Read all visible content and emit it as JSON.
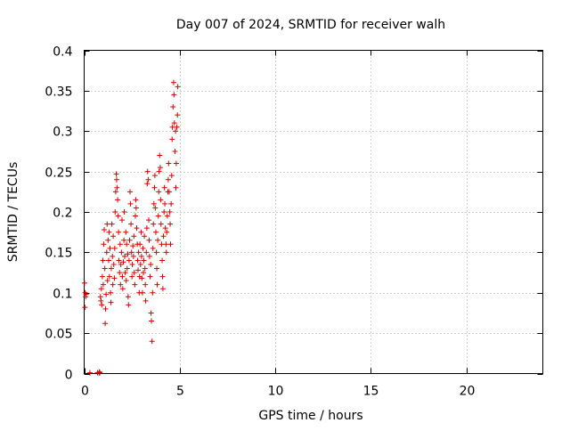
{
  "chart_data": {
    "type": "scatter",
    "title": "Day 007 of 2024, SRMTID for receiver walh",
    "xlabel": "GPS time / hours",
    "ylabel": "SRMTID / TECUs",
    "xlim": [
      0,
      24
    ],
    "ylim": [
      0,
      0.4
    ],
    "x_ticks": [
      0,
      5,
      10,
      15,
      20
    ],
    "x_tick_labels": [
      "0",
      "5",
      "10",
      "15",
      "20"
    ],
    "y_ticks": [
      0,
      0.05,
      0.1,
      0.15,
      0.2,
      0.25,
      0.3,
      0.35,
      0.4
    ],
    "y_tick_labels": [
      "0",
      "0.05",
      "0.1",
      "0.15",
      "0.2",
      "0.25",
      "0.3",
      "0.35",
      "0.4"
    ],
    "grid": true,
    "marker": "plus",
    "series_color": "#d90000",
    "series": [
      {
        "name": "SRMTID",
        "points": [
          [
            0.02,
            0.112
          ],
          [
            0.05,
            0.1
          ],
          [
            0.08,
            0.095
          ],
          [
            0.04,
            0.082
          ],
          [
            0.1,
            0.098
          ],
          [
            0.3,
            0.001
          ],
          [
            0.7,
            0.001
          ],
          [
            0.78,
            0.001
          ],
          [
            0.8,
            0.002
          ],
          [
            0.82,
            0.001
          ],
          [
            0.85,
            0.095
          ],
          [
            0.88,
            0.09
          ],
          [
            0.9,
            0.105
          ],
          [
            0.92,
            0.085
          ],
          [
            0.95,
            0.12
          ],
          [
            0.98,
            0.14
          ],
          [
            1.0,
            0.11
          ],
          [
            1.02,
            0.16
          ],
          [
            1.05,
            0.178
          ],
          [
            1.08,
            0.13
          ],
          [
            1.1,
            0.062
          ],
          [
            1.12,
            0.08
          ],
          [
            1.15,
            0.098
          ],
          [
            1.18,
            0.15
          ],
          [
            1.2,
            0.185
          ],
          [
            1.22,
            0.115
          ],
          [
            1.25,
            0.165
          ],
          [
            1.28,
            0.14
          ],
          [
            1.3,
            0.175
          ],
          [
            1.32,
            0.12
          ],
          [
            1.35,
            0.155
          ],
          [
            1.38,
            0.1
          ],
          [
            1.4,
            0.088
          ],
          [
            1.42,
            0.13
          ],
          [
            1.45,
            0.185
          ],
          [
            1.48,
            0.145
          ],
          [
            1.5,
            0.11
          ],
          [
            1.52,
            0.17
          ],
          [
            1.55,
            0.135
          ],
          [
            1.58,
            0.118
          ],
          [
            1.6,
            0.155
          ],
          [
            1.62,
            0.2
          ],
          [
            1.65,
            0.225
          ],
          [
            1.68,
            0.247
          ],
          [
            1.7,
            0.24
          ],
          [
            1.72,
            0.23
          ],
          [
            1.75,
            0.215
          ],
          [
            1.78,
            0.195
          ],
          [
            1.8,
            0.175
          ],
          [
            1.82,
            0.14
          ],
          [
            1.85,
            0.125
          ],
          [
            1.88,
            0.16
          ],
          [
            1.9,
            0.11
          ],
          [
            1.92,
            0.135
          ],
          [
            1.95,
            0.15
          ],
          [
            1.98,
            0.19
          ],
          [
            2.0,
            0.12
          ],
          [
            2.02,
            0.105
          ],
          [
            2.05,
            0.138
          ],
          [
            2.08,
            0.165
          ],
          [
            2.1,
            0.2
          ],
          [
            2.12,
            0.145
          ],
          [
            2.15,
            0.125
          ],
          [
            2.18,
            0.175
          ],
          [
            2.2,
            0.115
          ],
          [
            2.22,
            0.16
          ],
          [
            2.25,
            0.13
          ],
          [
            2.28,
            0.148
          ],
          [
            2.3,
            0.095
          ],
          [
            2.32,
            0.085
          ],
          [
            2.35,
            0.14
          ],
          [
            2.38,
            0.165
          ],
          [
            2.4,
            0.225
          ],
          [
            2.42,
            0.21
          ],
          [
            2.45,
            0.185
          ],
          [
            2.48,
            0.15
          ],
          [
            2.5,
            0.12
          ],
          [
            2.52,
            0.135
          ],
          [
            2.55,
            0.158
          ],
          [
            2.58,
            0.145
          ],
          [
            2.6,
            0.17
          ],
          [
            2.62,
            0.125
          ],
          [
            2.65,
            0.11
          ],
          [
            2.68,
            0.195
          ],
          [
            2.7,
            0.215
          ],
          [
            2.72,
            0.205
          ],
          [
            2.75,
            0.18
          ],
          [
            2.78,
            0.16
          ],
          [
            2.8,
            0.14
          ],
          [
            2.82,
            0.128
          ],
          [
            2.85,
            0.15
          ],
          [
            2.88,
            0.1
          ],
          [
            2.9,
            0.12
          ],
          [
            2.92,
            0.16
          ],
          [
            2.95,
            0.135
          ],
          [
            2.98,
            0.175
          ],
          [
            3.0,
            0.145
          ],
          [
            3.02,
            0.118
          ],
          [
            3.05,
            0.1
          ],
          [
            3.08,
            0.155
          ],
          [
            3.1,
            0.125
          ],
          [
            3.12,
            0.14
          ],
          [
            3.15,
            0.17
          ],
          [
            3.18,
            0.13
          ],
          [
            3.2,
            0.11
          ],
          [
            3.22,
            0.09
          ],
          [
            3.25,
            0.15
          ],
          [
            3.28,
            0.18
          ],
          [
            3.3,
            0.235
          ],
          [
            3.32,
            0.25
          ],
          [
            3.35,
            0.24
          ],
          [
            3.38,
            0.19
          ],
          [
            3.4,
            0.165
          ],
          [
            3.42,
            0.145
          ],
          [
            3.45,
            0.12
          ],
          [
            3.48,
            0.135
          ],
          [
            3.5,
            0.075
          ],
          [
            3.52,
            0.065
          ],
          [
            3.55,
            0.04
          ],
          [
            3.58,
            0.1
          ],
          [
            3.6,
            0.155
          ],
          [
            3.62,
            0.185
          ],
          [
            3.65,
            0.21
          ],
          [
            3.68,
            0.23
          ],
          [
            3.7,
            0.245
          ],
          [
            3.72,
            0.205
          ],
          [
            3.75,
            0.175
          ],
          [
            3.78,
            0.15
          ],
          [
            3.8,
            0.13
          ],
          [
            3.82,
            0.11
          ],
          [
            3.85,
            0.165
          ],
          [
            3.88,
            0.195
          ],
          [
            3.9,
            0.225
          ],
          [
            3.92,
            0.25
          ],
          [
            3.95,
            0.27
          ],
          [
            3.98,
            0.255
          ],
          [
            4.0,
            0.215
          ],
          [
            4.02,
            0.185
          ],
          [
            4.05,
            0.16
          ],
          [
            4.08,
            0.14
          ],
          [
            4.1,
            0.12
          ],
          [
            4.12,
            0.105
          ],
          [
            4.15,
            0.17
          ],
          [
            4.18,
            0.2
          ],
          [
            4.2,
            0.23
          ],
          [
            4.22,
            0.21
          ],
          [
            4.25,
            0.18
          ],
          [
            4.28,
            0.16
          ],
          [
            4.3,
            0.15
          ],
          [
            4.32,
            0.175
          ],
          [
            4.35,
            0.195
          ],
          [
            4.38,
            0.225
          ],
          [
            4.4,
            0.24
          ],
          [
            4.42,
            0.26
          ],
          [
            4.45,
            0.225
          ],
          [
            4.48,
            0.2
          ],
          [
            4.5,
            0.185
          ],
          [
            4.52,
            0.16
          ],
          [
            4.55,
            0.21
          ],
          [
            4.58,
            0.245
          ],
          [
            4.6,
            0.29
          ],
          [
            4.62,
            0.305
          ],
          [
            4.65,
            0.33
          ],
          [
            4.68,
            0.36
          ],
          [
            4.7,
            0.345
          ],
          [
            4.72,
            0.31
          ],
          [
            4.75,
            0.275
          ],
          [
            4.78,
            0.3
          ],
          [
            4.8,
            0.23
          ],
          [
            4.82,
            0.26
          ],
          [
            4.85,
            0.305
          ],
          [
            4.88,
            0.32
          ],
          [
            4.9,
            0.355
          ]
        ]
      }
    ]
  }
}
